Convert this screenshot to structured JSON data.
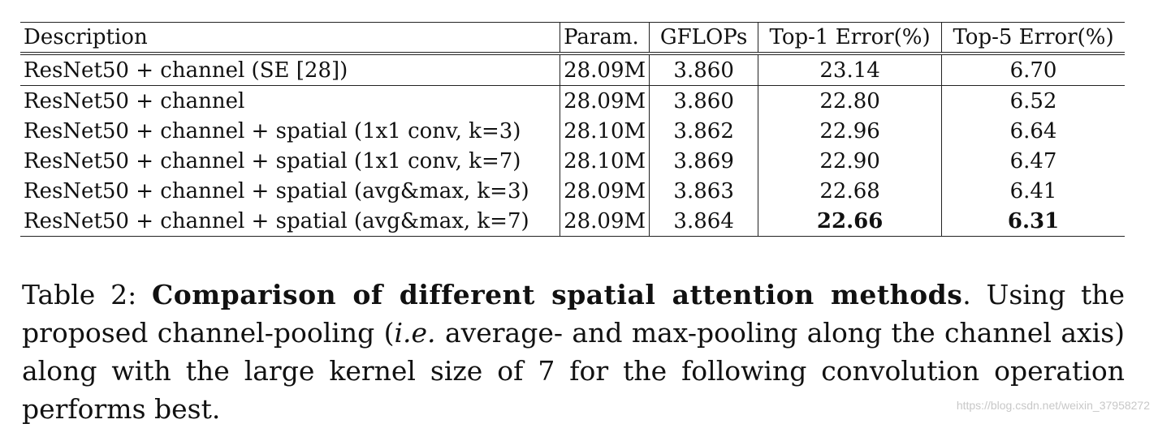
{
  "table": {
    "headers": [
      "Description",
      "Param.",
      "GFLOPs",
      "Top-1 Error(%)",
      "Top-5 Error(%)"
    ],
    "rows": [
      {
        "description": "ResNet50 + channel (SE [28])",
        "param": "28.09M",
        "gflops": "3.860",
        "top1": "23.14",
        "top5": "6.70"
      },
      {
        "description": "ResNet50 + channel",
        "param": "28.09M",
        "gflops": "3.860",
        "top1": "22.80",
        "top5": "6.52"
      },
      {
        "description": "ResNet50 + channel + spatial (1x1 conv, k=3)",
        "param": "28.10M",
        "gflops": "3.862",
        "top1": "22.96",
        "top5": "6.64"
      },
      {
        "description": "ResNet50 + channel + spatial (1x1 conv, k=7)",
        "param": "28.10M",
        "gflops": "3.869",
        "top1": "22.90",
        "top5": "6.47"
      },
      {
        "description": "ResNet50 + channel + spatial (avg&max, k=3)",
        "param": "28.09M",
        "gflops": "3.863",
        "top1": "22.68",
        "top5": "6.41"
      },
      {
        "description": "ResNet50 + channel + spatial (avg&max, k=7)",
        "param": "28.09M",
        "gflops": "3.864",
        "top1": "22.66",
        "top5": "6.31"
      }
    ]
  },
  "caption": {
    "label": "Table 2:",
    "title": "Comparison of different spatial attention methods",
    "text_1": ". Using the proposed channel-pooling (",
    "ie": "i.e.",
    "text_2": " average- and max-pooling along the channel axis) along with the large kernel size of 7 for the following convolution operation",
    "text_3": "performs best."
  },
  "watermark": "https://blog.csdn.net/weixin_37958272"
}
